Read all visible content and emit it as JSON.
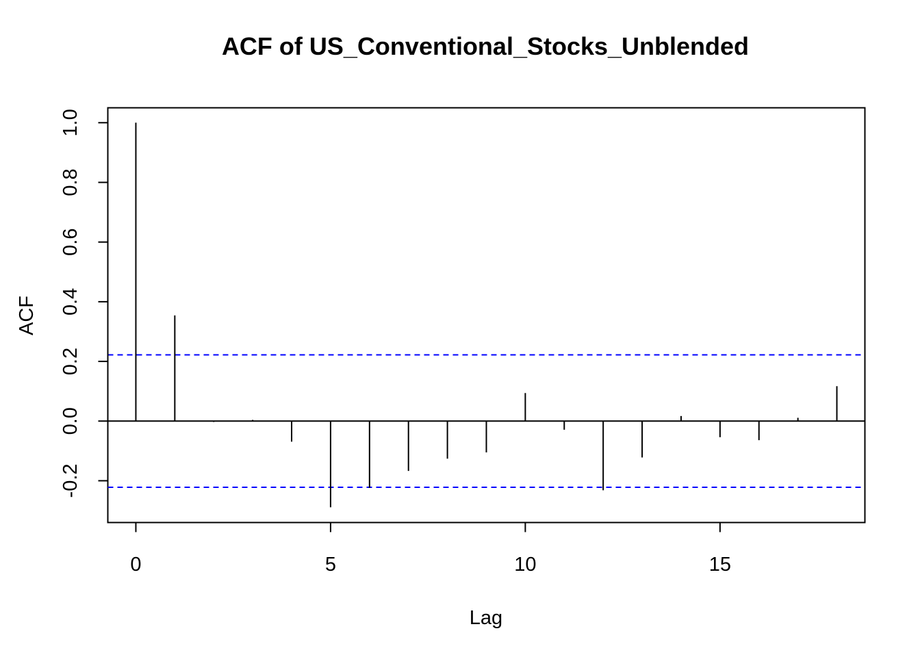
{
  "chart_data": {
    "type": "bar",
    "title": "ACF of US_Conventional_Stocks_Unblended",
    "xlabel": "Lag",
    "ylabel": "ACF",
    "xlim": [
      -0.72,
      18.72
    ],
    "ylim": [
      -0.34,
      1.05
    ],
    "xticks": [
      0,
      5,
      10,
      15
    ],
    "xtick_labels": [
      "0",
      "5",
      "10",
      "15"
    ],
    "yticks": [
      -0.2,
      0.0,
      0.2,
      0.4,
      0.6,
      0.8,
      1.0
    ],
    "ytick_labels": [
      "-0.2",
      "0.0",
      "0.2",
      "0.4",
      "0.6",
      "0.8",
      "1.0"
    ],
    "lags": [
      0,
      1,
      2,
      3,
      4,
      5,
      6,
      7,
      8,
      9,
      10,
      11,
      12,
      13,
      14,
      15,
      16,
      17,
      18
    ],
    "values": [
      1.0,
      0.354,
      -0.003,
      0.004,
      -0.069,
      -0.289,
      -0.224,
      -0.167,
      -0.126,
      -0.105,
      0.094,
      -0.029,
      -0.232,
      -0.122,
      0.017,
      -0.054,
      -0.064,
      0.011,
      0.117
    ],
    "confidence_bound": 0.222,
    "confidence_line_color": "#0000ff",
    "line_color": "#000000",
    "grid": false
  }
}
